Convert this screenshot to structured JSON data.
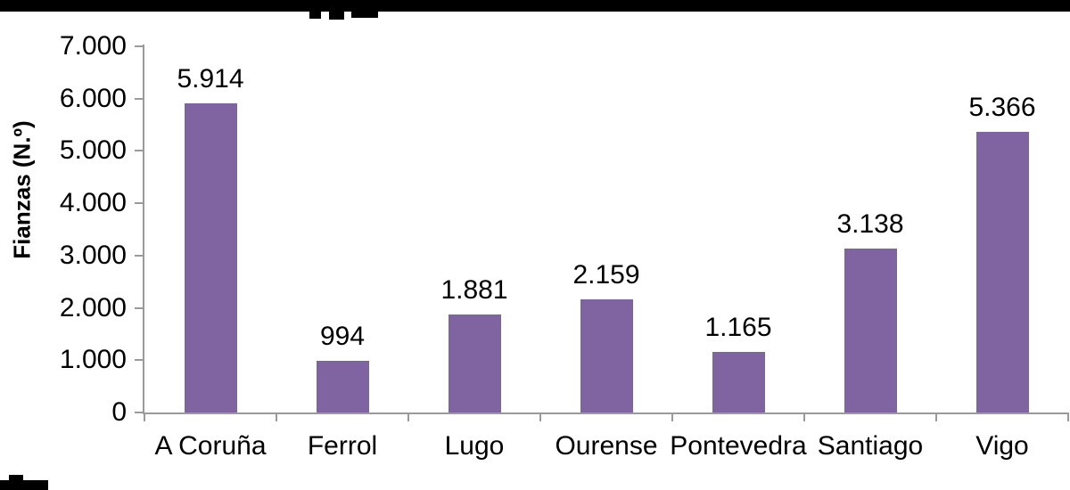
{
  "chart_data": {
    "type": "bar",
    "title": "",
    "xlabel": "",
    "ylabel": "Fianzas (N.º)",
    "categories": [
      "A Coruña",
      "Ferrol",
      "Lugo",
      "Ourense",
      "Pontevedra",
      "Santiago",
      "Vigo"
    ],
    "values": [
      5914,
      994,
      1881,
      2159,
      1165,
      3138,
      5366
    ],
    "value_labels": [
      "5.914",
      "994",
      "1.881",
      "2.159",
      "1.165",
      "3.138",
      "5.366"
    ],
    "ylim": [
      0,
      7000
    ],
    "ytick_values": [
      0,
      1000,
      2000,
      3000,
      4000,
      5000,
      6000,
      7000
    ],
    "ytick_labels": [
      "0",
      "1.000",
      "2.000",
      "3.000",
      "4.000",
      "5.000",
      "6.000",
      "7.000"
    ],
    "bar_color": "#8064A2",
    "axis_color": "#9a9a9a",
    "text_color": "#000000",
    "grid": false,
    "legend": "none",
    "data_labels_position": "above-bars"
  }
}
